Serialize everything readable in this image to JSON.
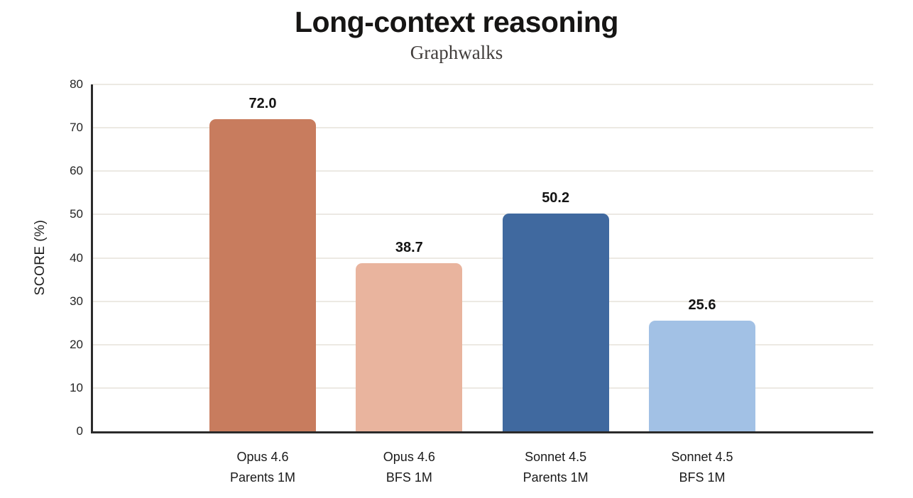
{
  "header": {
    "title": "Long-context reasoning",
    "subtitle": "Graphwalks"
  },
  "chart_data": {
    "type": "bar",
    "title": "Long-context reasoning",
    "subtitle": "Graphwalks",
    "xlabel": "",
    "ylabel": "SCORE (%)",
    "ylim": [
      0,
      80
    ],
    "yticks": [
      0,
      10,
      20,
      30,
      40,
      50,
      60,
      70,
      80
    ],
    "grid": true,
    "legend": false,
    "categories": [
      "Opus 4.6 Parents 1M",
      "Opus 4.6 BFS 1M",
      "Sonnet 4.5 Parents 1M",
      "Sonnet 4.5 BFS 1M"
    ],
    "categories_lines": [
      [
        "Opus 4.6",
        "Parents 1M"
      ],
      [
        "Opus 4.6",
        "BFS 1M"
      ],
      [
        "Sonnet 4.5",
        "Parents 1M"
      ],
      [
        "Sonnet 4.5",
        "BFS 1M"
      ]
    ],
    "values": [
      72.0,
      38.7,
      50.2,
      25.6
    ],
    "value_labels": [
      "72.0",
      "38.7",
      "50.2",
      "25.6"
    ],
    "bar_colors": [
      "#c87c5e",
      "#e9b49e",
      "#40699f",
      "#a2c1e5"
    ]
  },
  "colors": {
    "background": "#ffffff",
    "axis": "#2b2b2b",
    "gridline": "#ece9e3",
    "title": "#161514",
    "subtitle": "#413d3b",
    "tick_label": "#242424",
    "value_label": "#141414",
    "category_label": "#1a1a1a"
  }
}
